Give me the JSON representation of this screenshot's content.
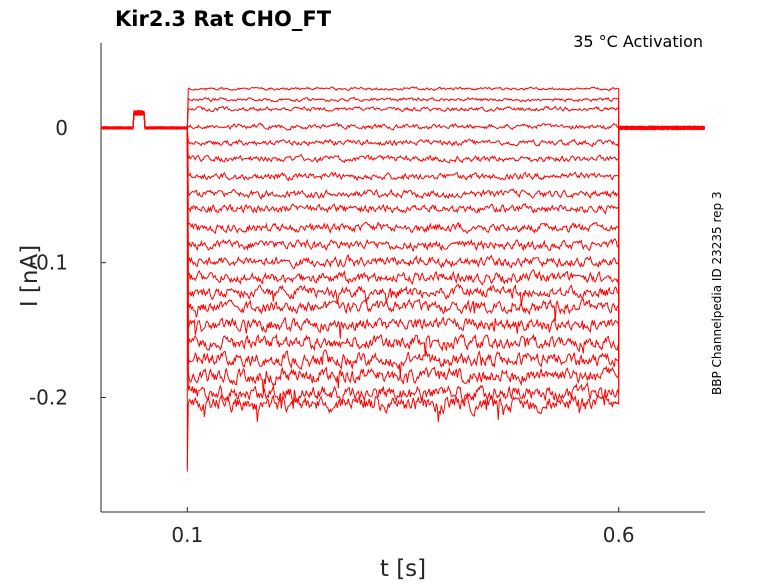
{
  "chart_data": {
    "type": "line",
    "title": "Kir2.3  Rat  CHO_FT",
    "annotation": "35 °C  Activation",
    "side_label": "BBP Channelpedia ID 23235 rep 3",
    "xlabel": "t [s]",
    "ylabel": "I [nA]",
    "xlim": [
      0.0,
      0.7
    ],
    "ylim": [
      -0.285,
      0.063
    ],
    "x_ticks": [
      0.1,
      0.6
    ],
    "x_tick_labels": [
      "0.1",
      "0.6"
    ],
    "y_ticks": [
      0,
      -0.1,
      -0.2
    ],
    "y_tick_labels": [
      "0",
      "-0.1",
      "-0.2"
    ],
    "grid": false,
    "legend": "none",
    "color": "#ff0000",
    "step_start_s": 0.1,
    "step_end_s": 0.6,
    "holding_level_nA": 0.0,
    "series": [
      {
        "values": [
          0.0,
          0.0,
          0.029,
          0.0
        ]
      },
      {
        "values": [
          0.0,
          0.0,
          0.021,
          0.0
        ]
      },
      {
        "values": [
          0.0,
          0.0,
          0.014,
          0.0
        ]
      },
      {
        "values": [
          0.0,
          0.0,
          0.001,
          0.0
        ]
      },
      {
        "values": [
          0.0,
          0.0,
          -0.011,
          0.0
        ]
      },
      {
        "values": [
          0.0,
          0.0,
          -0.023,
          0.0
        ]
      },
      {
        "values": [
          0.0,
          0.0,
          -0.036,
          0.0
        ]
      },
      {
        "values": [
          0.0,
          0.0,
          -0.049,
          0.0
        ]
      },
      {
        "values": [
          0.0,
          0.0,
          -0.06,
          0.0
        ]
      },
      {
        "values": [
          0.0,
          0.0,
          -0.074,
          0.0
        ]
      },
      {
        "values": [
          0.0,
          0.0,
          -0.087,
          0.0
        ]
      },
      {
        "values": [
          0.0,
          0.0,
          -0.099,
          0.0
        ]
      },
      {
        "values": [
          0.0,
          0.0,
          -0.111,
          0.0
        ]
      },
      {
        "values": [
          0.0,
          0.0,
          -0.122,
          0.0
        ]
      },
      {
        "values": [
          0.0,
          0.0,
          -0.133,
          0.0
        ]
      },
      {
        "values": [
          0.0,
          0.0,
          -0.146,
          0.0
        ]
      },
      {
        "values": [
          0.0,
          0.0,
          -0.159,
          0.0
        ]
      },
      {
        "values": [
          0.0,
          0.0,
          -0.172,
          0.0
        ]
      },
      {
        "values": [
          0.0,
          0.0,
          -0.184,
          0.0
        ]
      },
      {
        "values": [
          0.0,
          0.0,
          -0.197,
          0.0
        ]
      },
      {
        "values": [
          0.0,
          0.0,
          -0.205,
          0.0
        ]
      }
    ],
    "segment_x": [
      [
        0.0,
        0.1
      ],
      [
        0.6,
        0.7
      ],
      [
        0.1,
        0.6
      ]
    ]
  }
}
